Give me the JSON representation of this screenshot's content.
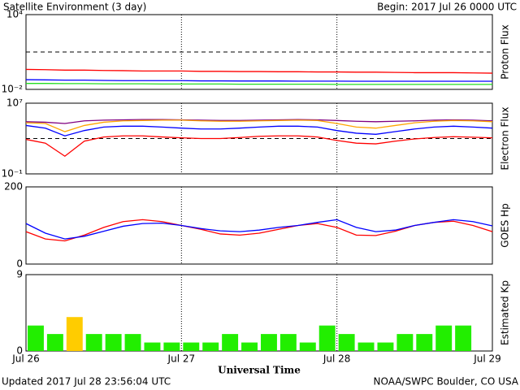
{
  "header": {
    "title": "Satellite Environment (3 day)",
    "begin": "Begin:  2017 Jul 26 0000 UTC"
  },
  "footer": {
    "updated": "Updated 2017 Jul 28 23:56:04 UTC",
    "credit": "NOAA/SWPC Boulder, CO USA"
  },
  "xaxis": {
    "label": "Universal Time",
    "xlim": [
      0,
      72
    ],
    "xticks": [
      {
        "value": 0,
        "label": "Jul 26"
      },
      {
        "value": 24,
        "label": "Jul 27"
      },
      {
        "value": 48,
        "label": "Jul 28"
      },
      {
        "value": 72,
        "label": "Jul 29"
      }
    ]
  },
  "chart_data": [
    {
      "type": "line",
      "ylabel": "Proton Flux",
      "log": true,
      "ylim": [
        0.01,
        10000
      ],
      "yticks": [
        {
          "value": 10000,
          "label": "10⁴"
        },
        {
          "value": 0.01,
          "label": "10⁻²"
        }
      ],
      "thresholds": [
        10
      ],
      "x": [
        0,
        3,
        6,
        9,
        12,
        15,
        18,
        21,
        24,
        27,
        30,
        33,
        36,
        39,
        42,
        45,
        48,
        51,
        54,
        57,
        60,
        63,
        66,
        69,
        72
      ],
      "series": [
        {
          "color": "#ff0000",
          "values": [
            0.4,
            0.38,
            0.35,
            0.35,
            0.33,
            0.32,
            0.3,
            0.3,
            0.3,
            0.28,
            0.28,
            0.27,
            0.27,
            0.26,
            0.26,
            0.25,
            0.25,
            0.24,
            0.24,
            0.23,
            0.22,
            0.22,
            0.22,
            0.21,
            0.2
          ]
        },
        {
          "color": "#0000ff",
          "values": [
            0.06,
            0.058,
            0.055,
            0.055,
            0.052,
            0.05,
            0.05,
            0.05,
            0.05,
            0.048,
            0.048,
            0.047,
            0.047,
            0.047,
            0.046,
            0.046,
            0.046,
            0.045,
            0.045,
            0.045,
            0.045,
            0.045,
            0.045,
            0.045,
            0.045
          ]
        },
        {
          "color": "#22dd22",
          "values": [
            0.03,
            0.03,
            0.029,
            0.029,
            0.028,
            0.028,
            0.028,
            0.027,
            0.027,
            0.027,
            0.027,
            0.026,
            0.026,
            0.026,
            0.026,
            0.026,
            0.025,
            0.025,
            0.025,
            0.025,
            0.025,
            0.025,
            0.025,
            0.025,
            0.025
          ]
        }
      ]
    },
    {
      "type": "line",
      "ylabel": "Electron Flux",
      "log": true,
      "ylim": [
        0.1,
        10000000
      ],
      "yticks": [
        {
          "value": 10000000,
          "label": "10⁷"
        },
        {
          "value": 0.1,
          "label": "10⁻¹"
        }
      ],
      "thresholds": [
        1000
      ],
      "x": [
        0,
        3,
        6,
        9,
        12,
        15,
        18,
        21,
        24,
        27,
        30,
        33,
        36,
        39,
        42,
        45,
        48,
        51,
        54,
        57,
        60,
        63,
        66,
        69,
        72
      ],
      "series": [
        {
          "color": "#800080",
          "values": [
            80000,
            70000,
            50000,
            100000,
            120000,
            130000,
            140000,
            140000,
            130000,
            120000,
            110000,
            110000,
            120000,
            130000,
            140000,
            130000,
            110000,
            90000,
            80000,
            90000,
            100000,
            120000,
            130000,
            120000,
            100000
          ]
        },
        {
          "color": "#ffa500",
          "values": [
            60000,
            50000,
            6000,
            30000,
            70000,
            100000,
            110000,
            120000,
            120000,
            100000,
            90000,
            90000,
            100000,
            110000,
            120000,
            110000,
            50000,
            20000,
            15000,
            30000,
            60000,
            90000,
            110000,
            100000,
            80000
          ]
        },
        {
          "color": "#0000ff",
          "values": [
            30000,
            15000,
            2000,
            8000,
            20000,
            25000,
            25000,
            20000,
            15000,
            12000,
            12000,
            15000,
            20000,
            25000,
            25000,
            20000,
            8000,
            4000,
            3000,
            6000,
            12000,
            20000,
            25000,
            20000,
            15000
          ]
        },
        {
          "color": "#ff0000",
          "values": [
            800,
            300,
            10,
            500,
            1500,
            2000,
            2000,
            1500,
            1200,
            1000,
            1000,
            1300,
            1800,
            2000,
            2000,
            1500,
            600,
            300,
            250,
            500,
            900,
            1300,
            1600,
            1400,
            1200
          ]
        }
      ]
    },
    {
      "type": "line",
      "ylabel": "GOES Hp",
      "log": false,
      "ylim": [
        0,
        200
      ],
      "yticks": [
        200,
        0
      ],
      "x": [
        0,
        3,
        6,
        9,
        12,
        15,
        18,
        21,
        24,
        27,
        30,
        33,
        36,
        39,
        42,
        45,
        48,
        51,
        54,
        57,
        60,
        63,
        66,
        69,
        72
      ],
      "series": [
        {
          "color": "#ff0000",
          "values": [
            84,
            65,
            60,
            75,
            95,
            110,
            115,
            110,
            100,
            90,
            78,
            75,
            80,
            90,
            100,
            105,
            95,
            75,
            74,
            85,
            100,
            108,
            111,
            100,
            84
          ]
        },
        {
          "color": "#0000ff",
          "values": [
            105,
            80,
            65,
            72,
            85,
            98,
            105,
            106,
            100,
            92,
            86,
            84,
            88,
            95,
            100,
            108,
            115,
            95,
            84,
            88,
            100,
            108,
            115,
            110,
            99
          ]
        }
      ]
    },
    {
      "type": "bar",
      "ylabel": "Estimated Kp",
      "log": false,
      "ylim": [
        0,
        9
      ],
      "yticks": [
        9,
        0
      ],
      "x": [
        1.5,
        4.5,
        7.5,
        10.5,
        13.5,
        16.5,
        19.5,
        22.5,
        25.5,
        28.5,
        31.5,
        34.5,
        37.5,
        40.5,
        43.5,
        46.5,
        49.5,
        52.5,
        55.5,
        58.5,
        61.5,
        64.5,
        67.5,
        70.5
      ],
      "values": [
        3,
        2,
        4,
        2,
        2,
        2,
        1,
        1,
        1,
        1,
        2,
        1,
        2,
        2,
        1,
        3,
        2,
        1,
        1,
        2,
        2,
        3,
        3,
        null
      ],
      "colors": [
        "#22ee00",
        "#22ee00",
        "#ffcc00",
        "#22ee00",
        "#22ee00",
        "#22ee00",
        "#22ee00",
        "#22ee00",
        "#22ee00",
        "#22ee00",
        "#22ee00",
        "#22ee00",
        "#22ee00",
        "#22ee00",
        "#22ee00",
        "#22ee00",
        "#22ee00",
        "#22ee00",
        "#22ee00",
        "#22ee00",
        "#22ee00",
        "#22ee00",
        "#22ee00",
        null
      ]
    }
  ]
}
